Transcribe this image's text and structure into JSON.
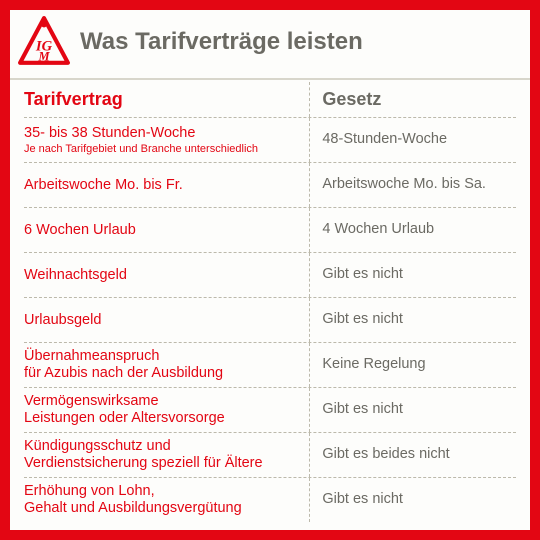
{
  "colors": {
    "brand_red": "#e30613",
    "text_gray": "#6b6a63",
    "dash": "#bcb9ab",
    "card_bg": "#fdfdfb"
  },
  "header": {
    "title": "Was Tarifverträge leisten",
    "logo_alt": "IG Metall"
  },
  "table": {
    "head_left": "Tarifvertrag",
    "head_right": "Gesetz",
    "rows": [
      {
        "left": "35- bis 38 Stunden-Woche",
        "left_sub": "Je nach Tarifgebiet und Branche unterschiedlich",
        "right": "48-Stunden-Woche"
      },
      {
        "left": "Arbeitswoche Mo. bis Fr.",
        "right": "Arbeitswoche Mo. bis Sa."
      },
      {
        "left": "6 Wochen Urlaub",
        "right": "4 Wochen Urlaub"
      },
      {
        "left": "Weihnachtsgeld",
        "right": "Gibt es nicht"
      },
      {
        "left": "Urlaubsgeld",
        "right": "Gibt es nicht"
      },
      {
        "left": "Übernahmeanspruch\nfür Azubis nach der Ausbildung",
        "right": "Keine Regelung"
      },
      {
        "left": "Vermögenswirksame\nLeistungen oder Altersvorsorge",
        "right": "Gibt es nicht"
      },
      {
        "left": "Kündigungsschutz und\nVerdienstsicherung speziell für Ältere",
        "right": "Gibt es beides nicht"
      },
      {
        "left": "Erhöhung von Lohn,\nGehalt und Ausbildungsvergütung",
        "right": "Gibt es nicht"
      }
    ]
  }
}
